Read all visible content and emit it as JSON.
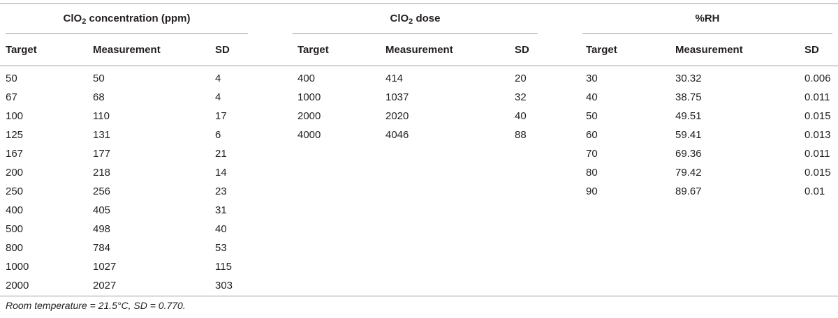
{
  "table": {
    "groups": [
      {
        "title_prefix": "ClO",
        "title_sub": "2",
        "title_suffix": " concentration (ppm)",
        "columns": [
          "Target",
          "Measurement",
          "SD"
        ],
        "rows": [
          [
            "50",
            "50",
            "4"
          ],
          [
            "67",
            "68",
            "4"
          ],
          [
            "100",
            "110",
            "17"
          ],
          [
            "125",
            "131",
            "6"
          ],
          [
            "167",
            "177",
            "21"
          ],
          [
            "200",
            "218",
            "14"
          ],
          [
            "250",
            "256",
            "23"
          ],
          [
            "400",
            "405",
            "31"
          ],
          [
            "500",
            "498",
            "40"
          ],
          [
            "800",
            "784",
            "53"
          ],
          [
            "1000",
            "1027",
            "115"
          ],
          [
            "2000",
            "2027",
            "303"
          ]
        ]
      },
      {
        "title_prefix": "ClO",
        "title_sub": "2",
        "title_suffix": " dose",
        "columns": [
          "Target",
          "Measurement",
          "SD"
        ],
        "rows": [
          [
            "400",
            "414",
            "20"
          ],
          [
            "1000",
            "1037",
            "32"
          ],
          [
            "2000",
            "2020",
            "40"
          ],
          [
            "4000",
            "4046",
            "88"
          ]
        ]
      },
      {
        "title_prefix": "%RH",
        "title_sub": "",
        "title_suffix": "",
        "columns": [
          "Target",
          "Measurement",
          "SD"
        ],
        "rows": [
          [
            "30",
            "30.32",
            "0.006"
          ],
          [
            "40",
            "38.75",
            "0.011"
          ],
          [
            "50",
            "49.51",
            "0.015"
          ],
          [
            "60",
            "59.41",
            "0.013"
          ],
          [
            "70",
            "69.36",
            "0.011"
          ],
          [
            "80",
            "79.42",
            "0.015"
          ],
          [
            "90",
            "89.67",
            "0.01"
          ]
        ]
      }
    ]
  },
  "footnote": "Room temperature = 21.5°C, SD = 0.770."
}
